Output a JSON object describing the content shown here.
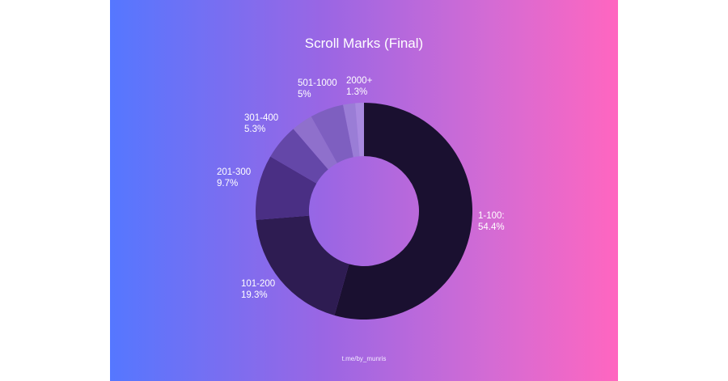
{
  "chart_data": {
    "type": "pie",
    "variant": "donut",
    "title": "Scroll Marks (Final)",
    "categories": [
      "1-100:",
      "101-200",
      "201-300",
      "301-400",
      "501-1000",
      "2000+"
    ],
    "values": [
      54.4,
      19.3,
      9.7,
      5.3,
      5,
      1.3
    ],
    "value_labels": [
      "54.4%",
      "19.3%",
      "9.7%",
      "5.3%",
      "5%",
      "1.3%"
    ],
    "colors": [
      "#1a1030",
      "#2e1c52",
      "#4a2f84",
      "#6447a8",
      "#7e5fc0",
      "#a98ae0"
    ],
    "unlabeled_slices": [
      {
        "value": 3.2,
        "color": "#8f70cc"
      },
      {
        "value": 1.8,
        "color": "#9a7dd6"
      }
    ],
    "unlabeled_slice_order": [
      0,
      1,
      2,
      3,
      "u0",
      4,
      "u1",
      5
    ],
    "start_angle": "top",
    "direction": "clockwise"
  },
  "footer": {
    "credit": "t.me/by_munris"
  }
}
